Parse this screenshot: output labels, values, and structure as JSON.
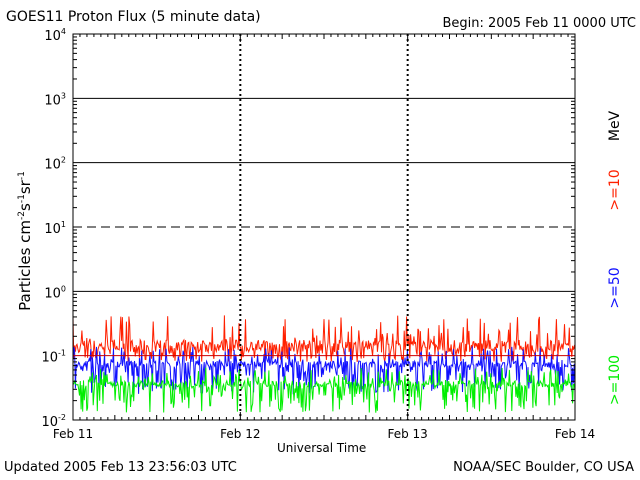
{
  "header": {
    "title": "GOES11 Proton Flux (5 minute data)",
    "begin": "Begin: 2005 Feb 11 0000 UTC"
  },
  "footer": {
    "updated": "Updated 2005 Feb 13 23:56:03 UTC",
    "credit": "NOAA/SEC Boulder, CO USA"
  },
  "colors": {
    "ge10": "#ff2000",
    "ge50": "#1010ff",
    "ge100": "#00ee00",
    "threshold": "#cc0000",
    "axes": "#000000"
  },
  "chart_data": {
    "type": "line",
    "title": "GOES11 Proton Flux (5 minute data)",
    "xlabel": "Universal Time",
    "ylabel": "Particles cm-2s-1sr-1",
    "ylabel_parts": {
      "prefix": "Particles cm",
      "exp1": "-2",
      "mid1": "s",
      "exp2": "-1",
      "mid2": "sr",
      "exp3": "-1"
    },
    "yscale": "log",
    "ylim": [
      0.01,
      10000
    ],
    "xlim_days": [
      0,
      3
    ],
    "x_tick_labels": [
      "Feb 11",
      "Feb 12",
      "Feb 13",
      "Feb 14"
    ],
    "y_ticks": [
      {
        "base": "10",
        "exp": "-2",
        "value": 0.01
      },
      {
        "base": "10",
        "exp": "-1",
        "value": 0.1
      },
      {
        "base": "10",
        "exp": "0",
        "value": 1
      },
      {
        "base": "10",
        "exp": "1",
        "value": 10
      },
      {
        "base": "10",
        "exp": "2",
        "value": 100
      },
      {
        "base": "10",
        "exp": "3",
        "value": 1000
      },
      {
        "base": "10",
        "exp": "4",
        "value": 10000
      }
    ],
    "threshold": 10,
    "legend_placement": "right",
    "legend_unit": "MeV",
    "series": [
      {
        "name": ">=10",
        "color": "#ff2000",
        "baseline": 0.13,
        "peak": 0.45,
        "floor": 0.08
      },
      {
        "name": ">=50",
        "color": "#1010ff",
        "baseline": 0.07,
        "peak": 0.14,
        "floor": 0.025
      },
      {
        "name": ">=100",
        "color": "#00ee00",
        "baseline": 0.035,
        "peak": 0.065,
        "floor": 0.013
      }
    ]
  }
}
